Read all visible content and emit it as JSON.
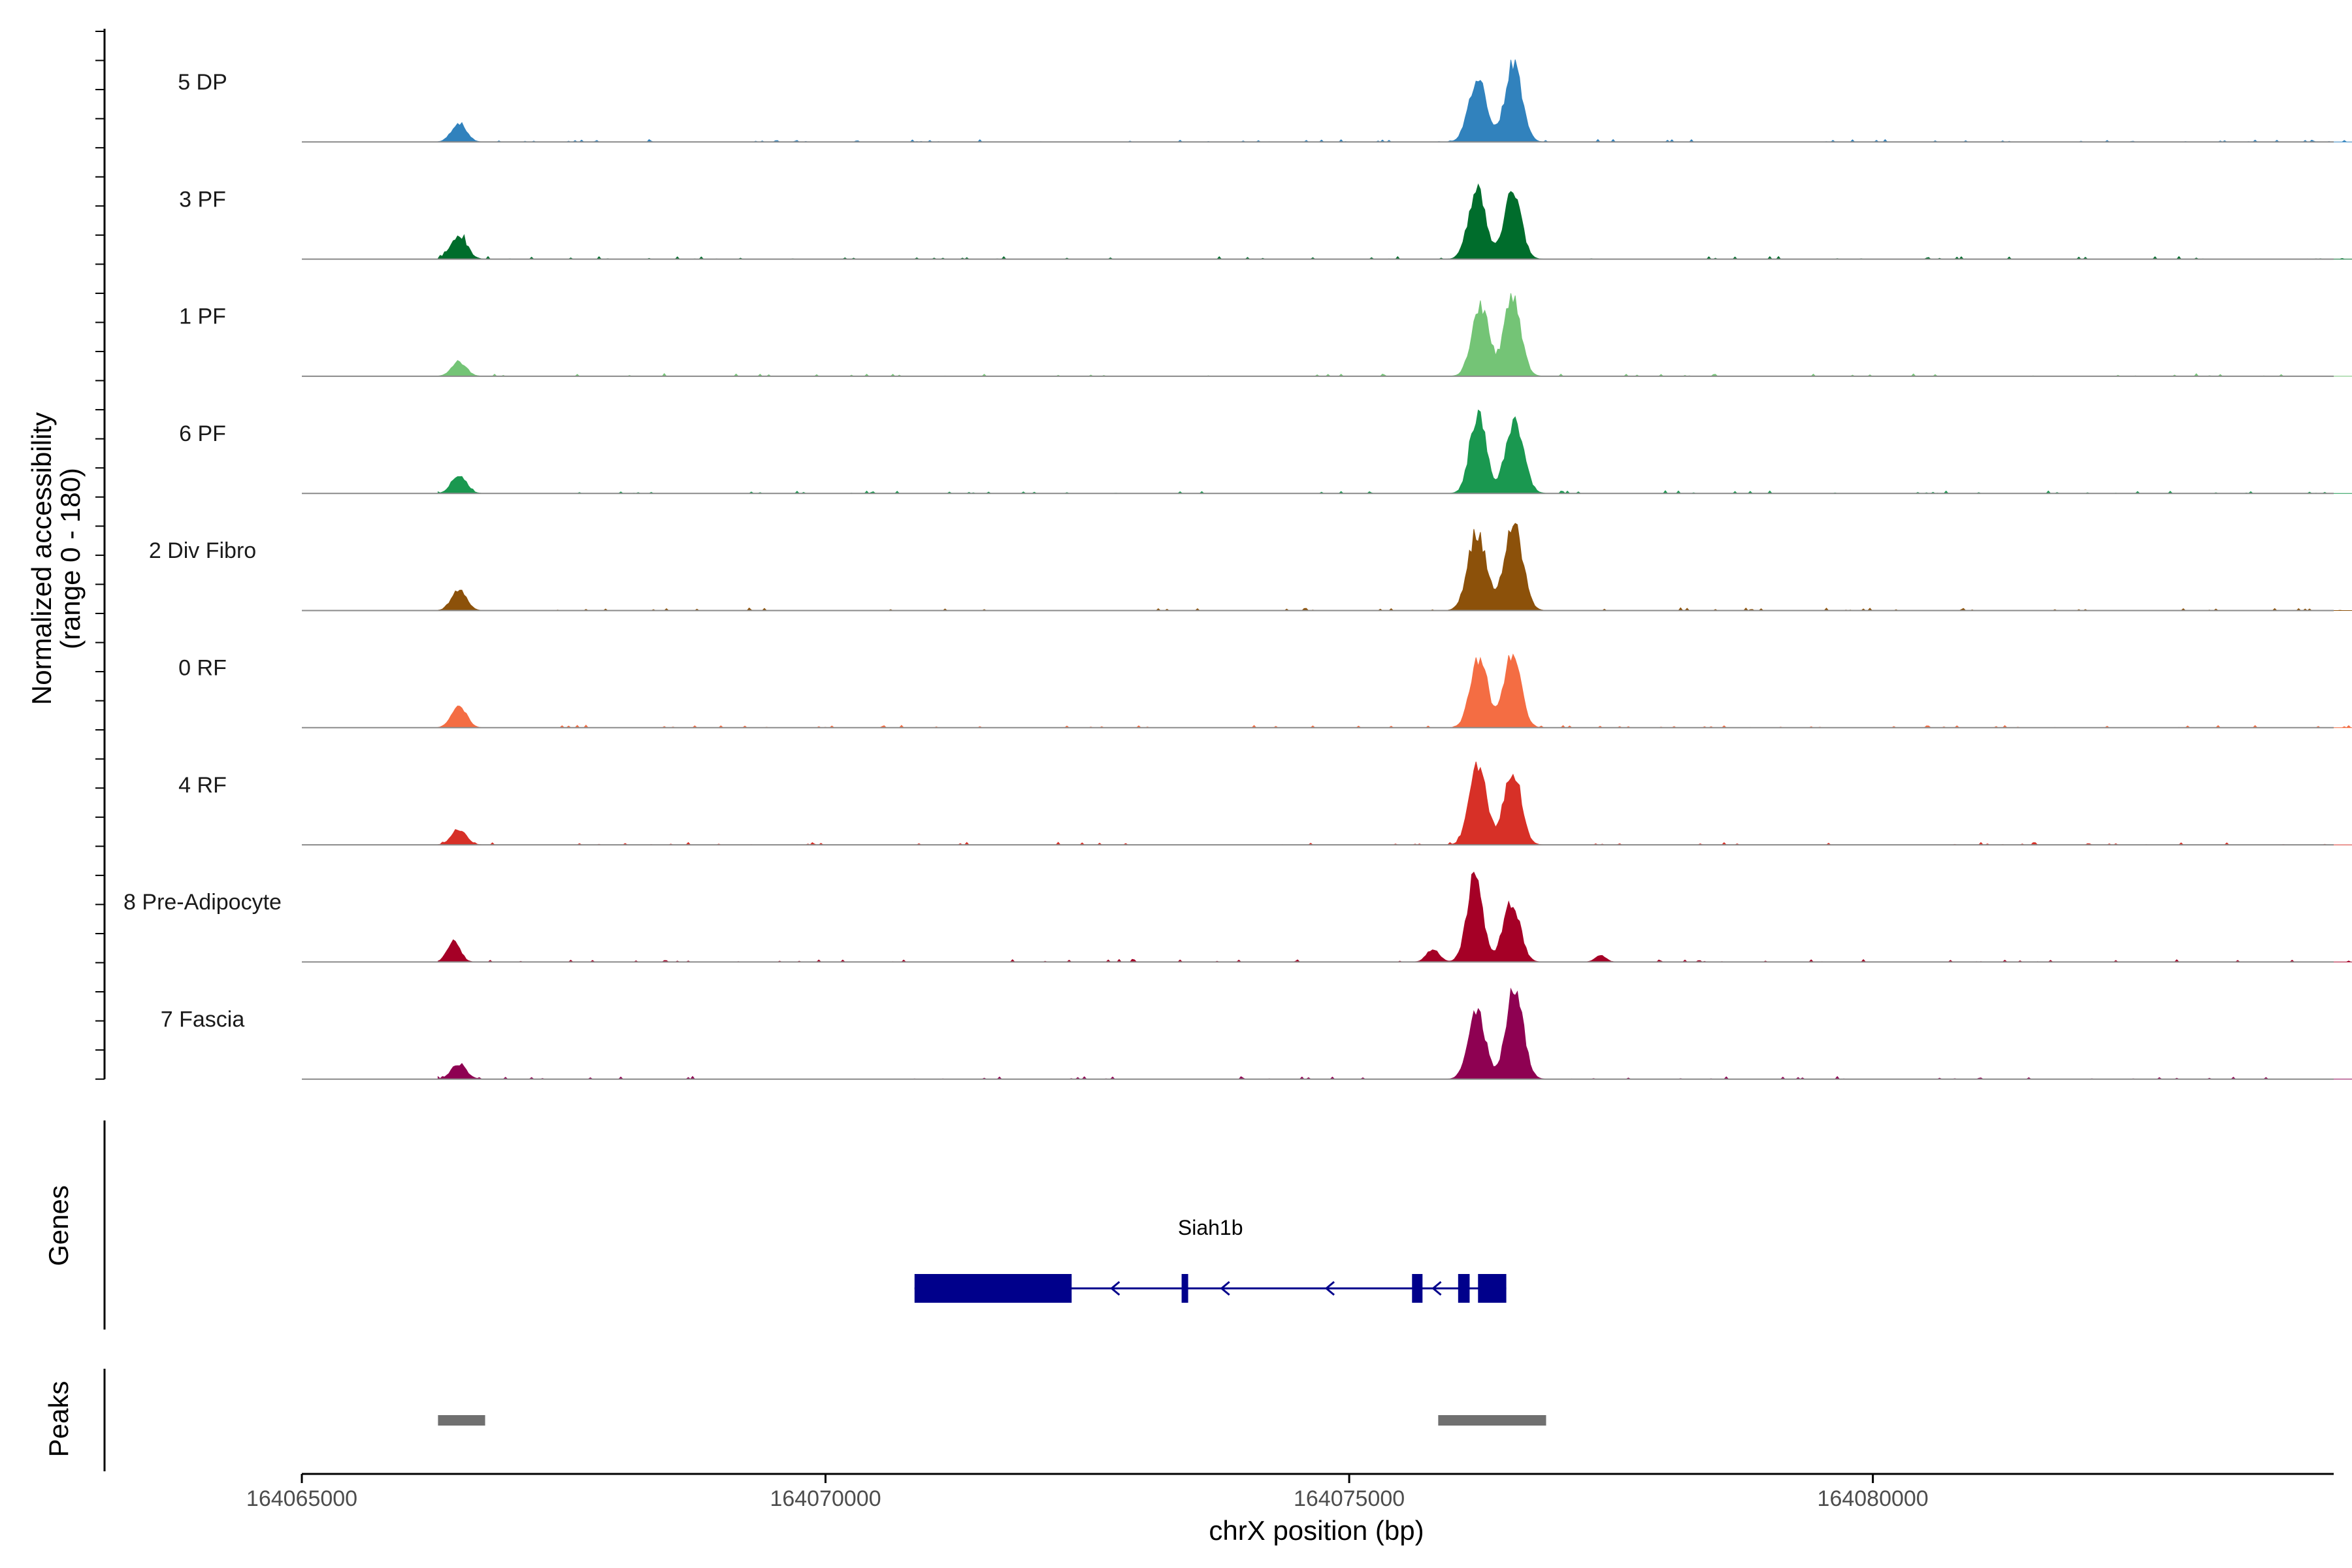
{
  "chart_data": {
    "type": "area",
    "title": "",
    "xlabel": "chrX position (bp)",
    "ylabel_line1": "Normalized accessibility",
    "ylabel_line2": "(range 0 - 180)",
    "xlim": [
      164065000,
      164084400
    ],
    "ylim": [
      0,
      180
    ],
    "x_ticks": [
      164065000,
      164070000,
      164075000,
      164080000
    ],
    "x_tick_labels": [
      "164065000",
      "164070000",
      "164075000",
      "164080000"
    ],
    "tracks": [
      {
        "name": "5 DP",
        "color": "#3182BD",
        "peaks": [
          {
            "x": 164066500,
            "h": 30,
            "w": 70
          },
          {
            "x": 164076230,
            "h": 100,
            "w": 85
          },
          {
            "x": 164076570,
            "h": 125,
            "w": 80
          }
        ]
      },
      {
        "name": "3 PF",
        "color": "#006D2C",
        "peaks": [
          {
            "x": 164066500,
            "h": 38,
            "w": 75
          },
          {
            "x": 164076220,
            "h": 112,
            "w": 80
          },
          {
            "x": 164076560,
            "h": 108,
            "w": 80
          }
        ]
      },
      {
        "name": "1 PF",
        "color": "#74C476",
        "peaks": [
          {
            "x": 164066500,
            "h": 22,
            "w": 70
          },
          {
            "x": 164076250,
            "h": 112,
            "w": 80
          },
          {
            "x": 164076560,
            "h": 124,
            "w": 80
          }
        ]
      },
      {
        "name": "6 PF",
        "color": "#1A9850",
        "peaks": [
          {
            "x": 164066500,
            "h": 30,
            "w": 70
          },
          {
            "x": 164076230,
            "h": 130,
            "w": 75
          },
          {
            "x": 164076580,
            "h": 118,
            "w": 85
          }
        ]
      },
      {
        "name": "2 Div Fibro",
        "color": "#8C510A",
        "peaks": [
          {
            "x": 164066500,
            "h": 34,
            "w": 70
          },
          {
            "x": 164076220,
            "h": 125,
            "w": 85
          },
          {
            "x": 164076570,
            "h": 140,
            "w": 85
          }
        ]
      },
      {
        "name": "0 RF",
        "color": "#F46D43",
        "peaks": [
          {
            "x": 164066500,
            "h": 35,
            "w": 70
          },
          {
            "x": 164076240,
            "h": 110,
            "w": 80
          },
          {
            "x": 164076560,
            "h": 115,
            "w": 80
          }
        ]
      },
      {
        "name": "4 RF",
        "color": "#D73027",
        "peaks": [
          {
            "x": 164066500,
            "h": 24,
            "w": 70
          },
          {
            "x": 164076230,
            "h": 130,
            "w": 80
          },
          {
            "x": 164076560,
            "h": 120,
            "w": 80
          }
        ]
      },
      {
        "name": "8 Pre-Adipocyte",
        "color": "#A50026",
        "peaks": [
          {
            "x": 164066450,
            "h": 35,
            "w": 60
          },
          {
            "x": 164076200,
            "h": 135,
            "w": 75
          },
          {
            "x": 164076550,
            "h": 95,
            "w": 80
          },
          {
            "x": 164075800,
            "h": 20,
            "w": 60
          },
          {
            "x": 164077400,
            "h": 10,
            "w": 50
          }
        ]
      },
      {
        "name": "7 Fascia",
        "color": "#8E0152",
        "peaks": [
          {
            "x": 164066500,
            "h": 24,
            "w": 70
          },
          {
            "x": 164076220,
            "h": 105,
            "w": 80
          },
          {
            "x": 164076580,
            "h": 145,
            "w": 80
          }
        ]
      }
    ],
    "genes": [
      {
        "name": "Siah1b",
        "color": "#00008B",
        "strand": "-",
        "start": 164070850,
        "end": 164076500,
        "exons": [
          [
            164070850,
            164072350
          ],
          [
            164073400,
            164073460
          ],
          [
            164075600,
            164075700
          ],
          [
            164076040,
            164076150
          ],
          [
            164076230,
            164076500
          ]
        ],
        "arrows": [
          164072750,
          164073800,
          164074800,
          164075820
        ]
      }
    ],
    "peaks_track": {
      "color": "#707070",
      "regions": [
        [
          164066300,
          164066750
        ],
        [
          164075850,
          164076880
        ]
      ]
    },
    "panel_titles": {
      "genes": "Genes",
      "peaks": "Peaks"
    }
  }
}
